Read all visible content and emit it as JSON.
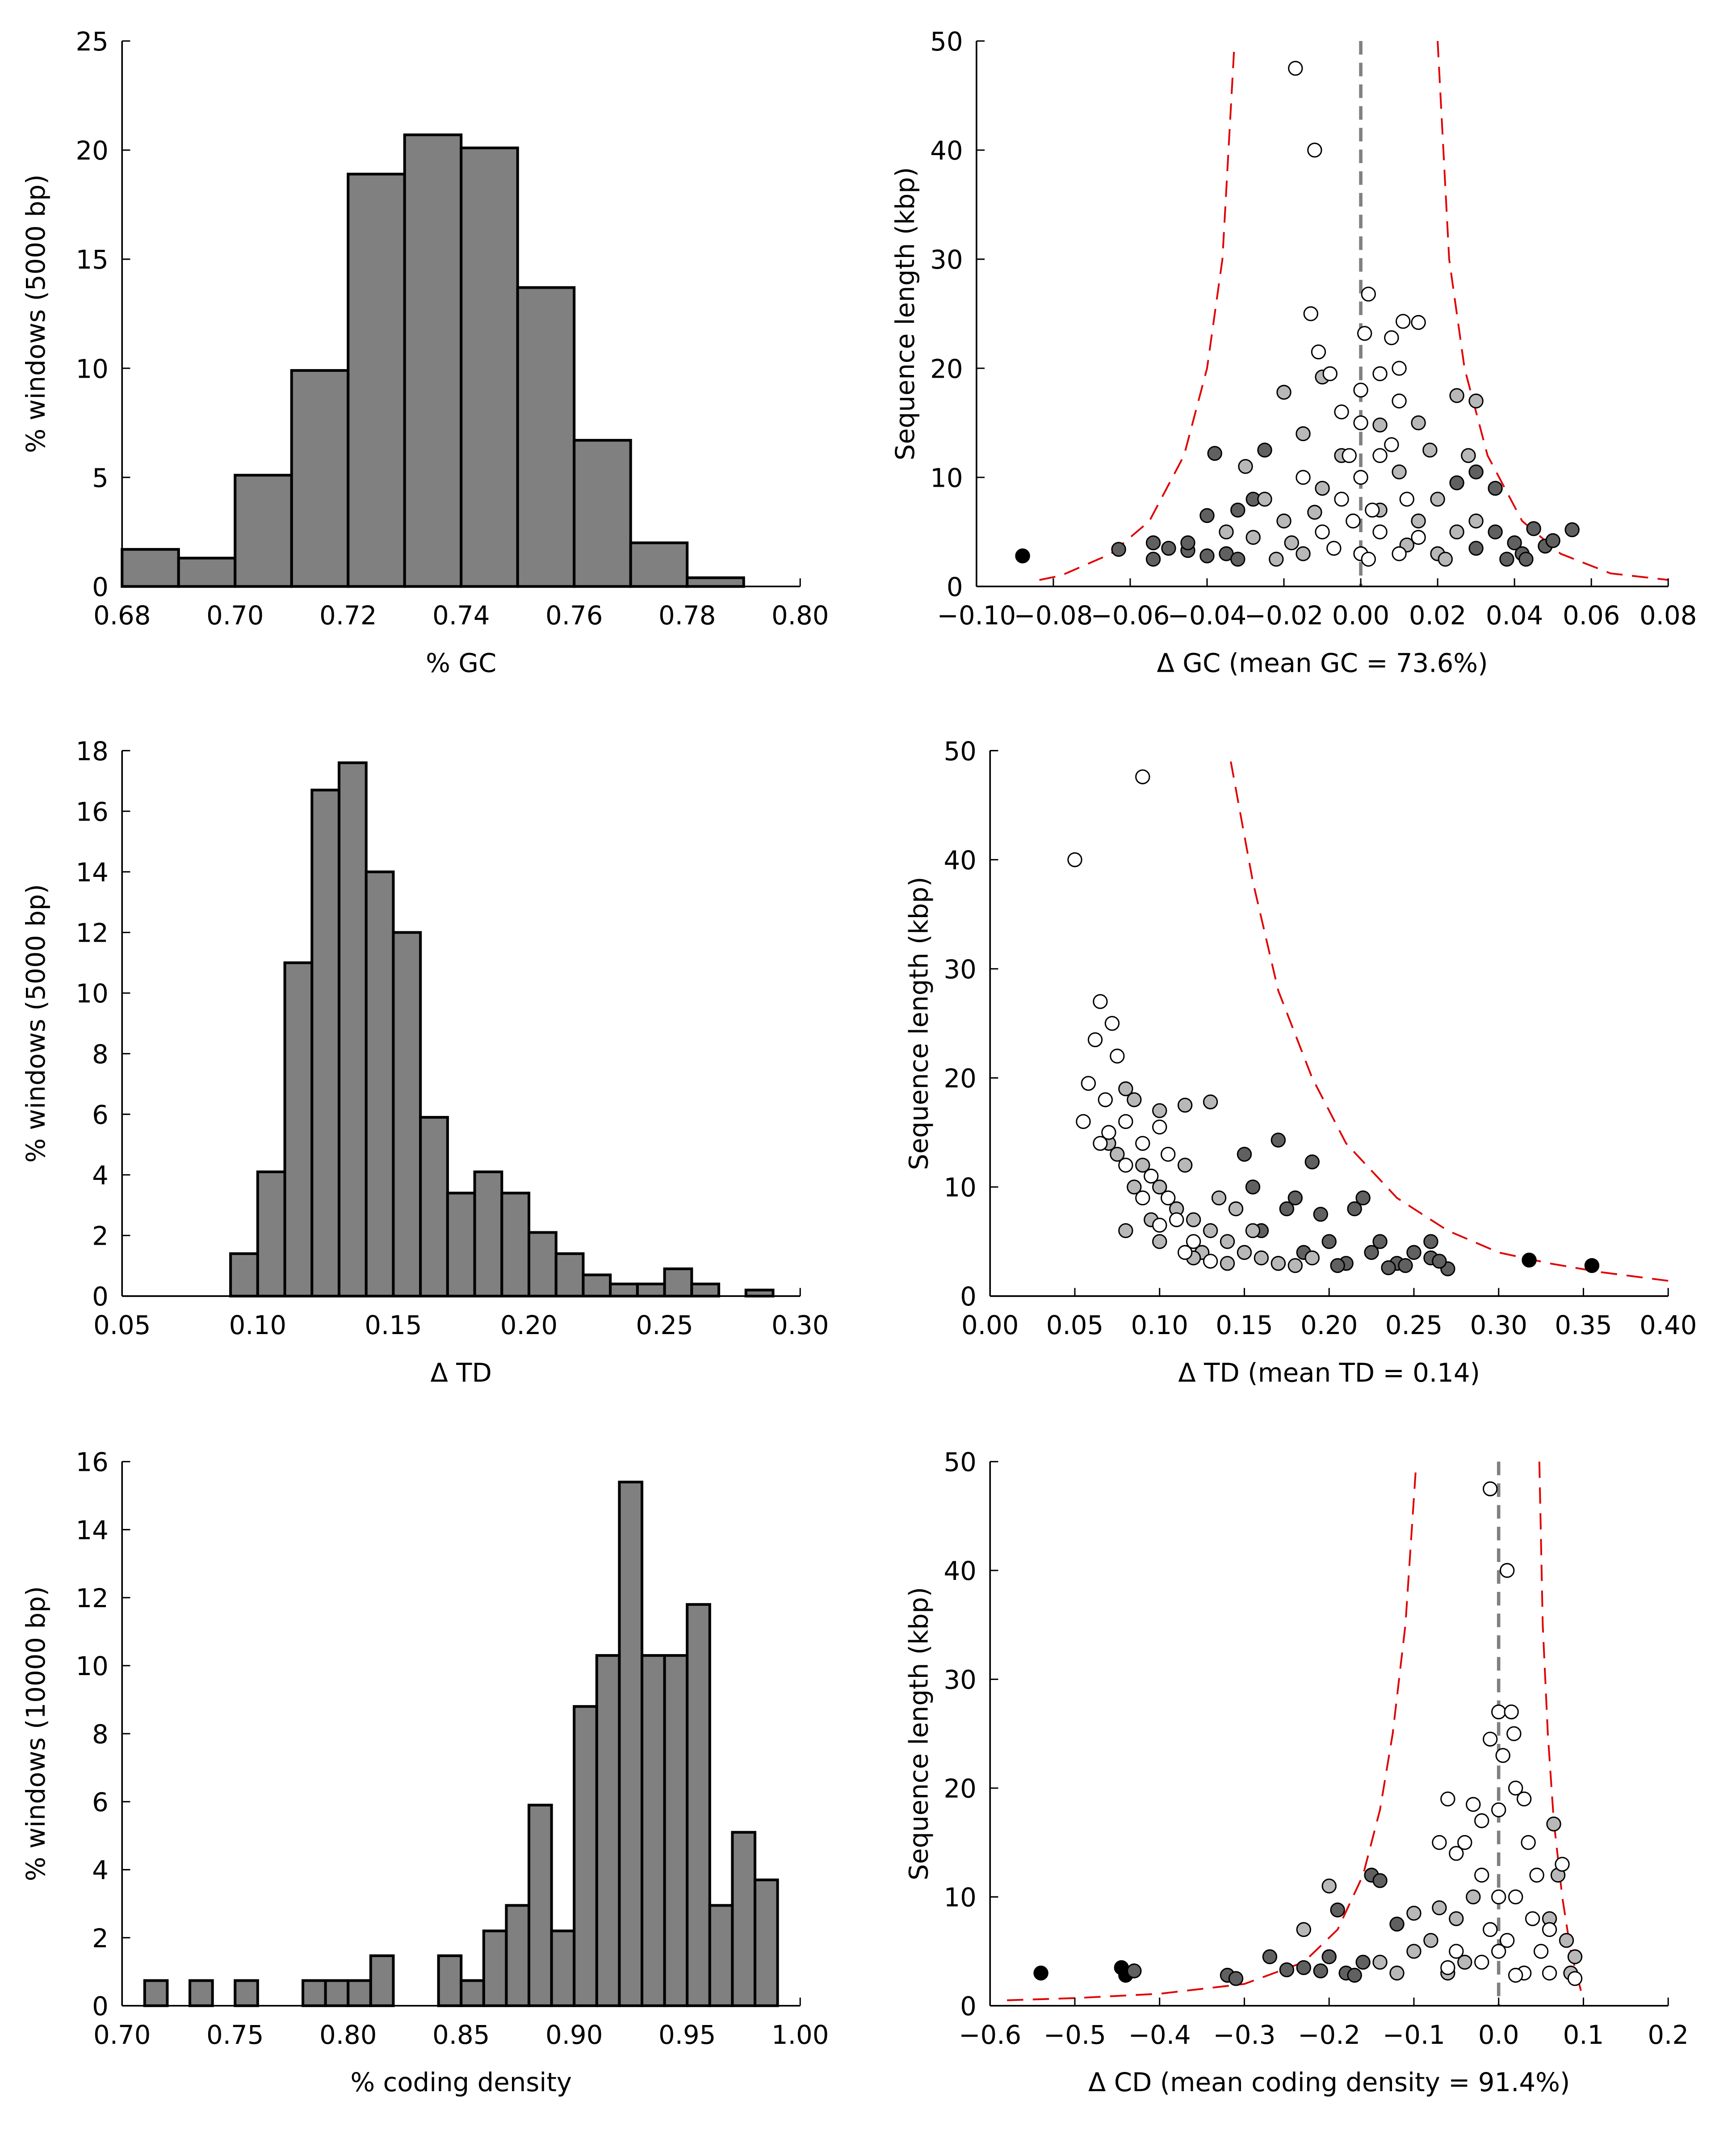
{
  "chart_data": [
    {
      "type": "histogram",
      "xlabel": "% GC",
      "ylabel": "% windows (5000 bp)",
      "color": "#808080",
      "bins": [
        0.68,
        0.69,
        0.7,
        0.71,
        0.72,
        0.73,
        0.74,
        0.75,
        0.76,
        0.77,
        0.78,
        0.79
      ],
      "values": [
        1.7,
        1.3,
        5.1,
        9.9,
        18.9,
        20.7,
        20.1,
        13.7,
        6.7,
        2.0,
        0.4
      ],
      "xlim": [
        0.68,
        0.8
      ],
      "xticks": [
        0.68,
        {
          "value": 0.7,
          "label": "0.70"
        },
        0.72,
        0.74,
        0.76,
        0.78,
        {
          "value": 0.8,
          "label": "0.80"
        }
      ],
      "ylim": [
        0,
        25
      ],
      "yticks": [
        0,
        5,
        10,
        15,
        20,
        25
      ]
    },
    {
      "type": "scatter",
      "xlabel": "Δ GC (mean GC = 73.6%)",
      "ylabel": "Sequence length (kbp)",
      "xlim": [
        -0.1,
        0.08
      ],
      "xticks": [
        {
          "value": -0.1,
          "label": "−0.10"
        },
        {
          "value": -0.08,
          "label": "−0.08"
        },
        {
          "value": -0.06,
          "label": "−0.06"
        },
        {
          "value": -0.04,
          "label": "−0.04"
        },
        {
          "value": -0.02,
          "label": "−0.02"
        },
        {
          "value": 0,
          "label": "0.00"
        },
        0.02,
        0.04,
        0.06,
        0.08
      ],
      "ylim": [
        0,
        50
      ],
      "yticks": [
        0,
        10,
        20,
        30,
        40,
        50
      ],
      "vline": {
        "value": 0,
        "color": "#808080"
      },
      "curves": [
        {
          "color": "#e00000",
          "x": [
            -0.033,
            -0.036,
            -0.04,
            -0.046,
            -0.055,
            -0.065,
            -0.078,
            -0.085
          ],
          "y": [
            49,
            30,
            20,
            12,
            6,
            3,
            1,
            0.5
          ]
        },
        {
          "color": "#e00000",
          "x": [
            0.02,
            0.023,
            0.027,
            0.033,
            0.042,
            0.052,
            0.065,
            0.08
          ],
          "y": [
            50,
            30,
            20,
            12,
            6,
            3,
            1.2,
            0.6
          ]
        }
      ],
      "series": [
        {
          "color": "#000000",
          "x": [
            -0.088
          ],
          "y": [
            2.8
          ]
        },
        {
          "color": "#606060",
          "x": [
            -0.063,
            -0.054,
            -0.054,
            -0.05,
            -0.045,
            -0.04,
            -0.038,
            -0.035,
            -0.032,
            -0.025,
            -0.032,
            0.03,
            0.035,
            0.035,
            0.04,
            0.042,
            0.045,
            0.048,
            0.055,
            0.05,
            0.03,
            0.025,
            -0.028,
            0.038,
            0.043,
            -0.04,
            -0.045
          ],
          "y": [
            3.4,
            4.0,
            2.5,
            3.5,
            3.3,
            6.5,
            12.2,
            3.0,
            7.0,
            12.5,
            2.5,
            3.5,
            5,
            9,
            4,
            3,
            5.3,
            3.7,
            5.2,
            4.2,
            10.5,
            9.5,
            8,
            2.5,
            2.5,
            2.8,
            4
          ]
        },
        {
          "color": "#b8b8b8",
          "x": [
            -0.02,
            -0.015,
            -0.01,
            0.005,
            0.015,
            0.025,
            0.03,
            -0.03,
            -0.025,
            -0.02,
            -0.018,
            -0.015,
            -0.01,
            0.01,
            0.02,
            0.025,
            0.02,
            0.015,
            0.028,
            0.018,
            0.005,
            -0.005,
            -0.022,
            0.022,
            0.0,
            0.03,
            -0.028,
            -0.035,
            0.012,
            -0.012
          ],
          "y": [
            17.8,
            14,
            19.2,
            14.8,
            15,
            17.5,
            17,
            11,
            8,
            6,
            4,
            3,
            9,
            10.5,
            8,
            5,
            3,
            6,
            12,
            12.5,
            7,
            12,
            2.5,
            2.5,
            3,
            6,
            4.5,
            5,
            3.8,
            6.8
          ]
        },
        {
          "color": "#ffffff",
          "x": [
            -0.017,
            -0.012,
            -0.013,
            -0.011,
            0.001,
            0.011,
            0.015,
            0.002,
            0.008,
            -0.008,
            0.0,
            0.005,
            0.01,
            0.0,
            0.005,
            -0.005,
            0.01,
            0.0,
            -0.005,
            0.005,
            0.0,
            -0.01,
            0.01,
            0.003,
            -0.003,
            0.012,
            -0.015,
            0.002,
            -0.007,
            0.015,
            0.008,
            -0.002
          ],
          "y": [
            47.5,
            40,
            25,
            21.5,
            23.2,
            24.3,
            24.2,
            26.8,
            22.8,
            19.5,
            18,
            19.5,
            20,
            15,
            12,
            16,
            17,
            10,
            8,
            5,
            3,
            5,
            3,
            7,
            12,
            8,
            10,
            2.5,
            3.5,
            4.5,
            13,
            6
          ]
        }
      ]
    },
    {
      "type": "histogram",
      "xlabel": "Δ TD",
      "ylabel": "% windows (5000 bp)",
      "color": "#808080",
      "bins": [
        0.09,
        0.1,
        0.11,
        0.12,
        0.13,
        0.14,
        0.15,
        0.16,
        0.17,
        0.18,
        0.19,
        0.2,
        0.21,
        0.22,
        0.23,
        0.24,
        0.25,
        0.26,
        0.27,
        0.28,
        0.29
      ],
      "values": [
        1.4,
        4.1,
        11.0,
        16.7,
        17.6,
        14.0,
        12.0,
        5.9,
        3.4,
        4.1,
        3.4,
        2.1,
        1.4,
        0.7,
        0.4,
        0.4,
        0.9,
        0.4,
        0,
        0.2
      ],
      "xlim": [
        0.05,
        0.3
      ],
      "xticks": [
        0.05,
        {
          "value": 0.1,
          "label": "0.10"
        },
        0.15,
        {
          "value": 0.2,
          "label": "0.20"
        },
        0.25,
        {
          "value": 0.3,
          "label": "0.30"
        }
      ],
      "ylim": [
        0,
        18
      ],
      "yticks": [
        0,
        2,
        4,
        6,
        8,
        10,
        12,
        14,
        16,
        18
      ]
    },
    {
      "type": "scatter",
      "xlabel": "Δ TD (mean TD = 0.14)",
      "ylabel": "Sequence length (kbp)",
      "xlim": [
        0,
        0.4
      ],
      "xticks": [
        {
          "value": 0,
          "label": "0.00"
        },
        0.05,
        {
          "value": 0.1,
          "label": "0.10"
        },
        0.15,
        {
          "value": 0.2,
          "label": "0.20"
        },
        0.25,
        {
          "value": 0.3,
          "label": "0.30"
        },
        0.35,
        {
          "value": 0.4,
          "label": "0.40"
        }
      ],
      "ylim": [
        0,
        50
      ],
      "yticks": [
        0,
        10,
        20,
        30,
        40,
        50
      ],
      "curves": [
        {
          "color": "#e00000",
          "x": [
            0.142,
            0.155,
            0.17,
            0.19,
            0.21,
            0.24,
            0.27,
            0.3,
            0.33,
            0.36,
            0.4
          ],
          "y": [
            49,
            38,
            28,
            20,
            14,
            9,
            6,
            4,
            3,
            2.2,
            1.4
          ]
        }
      ],
      "series": [
        {
          "color": "#000000",
          "x": [
            0.318,
            0.355
          ],
          "y": [
            3.3,
            2.8
          ]
        },
        {
          "color": "#606060",
          "x": [
            0.15,
            0.17,
            0.19,
            0.22,
            0.23,
            0.24,
            0.25,
            0.26,
            0.27,
            0.2,
            0.21,
            0.18,
            0.195,
            0.225,
            0.175,
            0.26,
            0.215,
            0.16,
            0.185,
            0.205,
            0.235,
            0.265,
            0.245,
            0.17,
            0.155
          ],
          "y": [
            13,
            14.3,
            12.3,
            9,
            5,
            3,
            4,
            3.5,
            2.5,
            5,
            3,
            9,
            7.5,
            4,
            8,
            5,
            8,
            6,
            4,
            2.8,
            2.6,
            3.2,
            2.8,
            3,
            10
          ]
        },
        {
          "color": "#b8b8b8",
          "x": [
            0.08,
            0.085,
            0.1,
            0.115,
            0.13,
            0.07,
            0.09,
            0.1,
            0.11,
            0.12,
            0.13,
            0.14,
            0.15,
            0.16,
            0.17,
            0.18,
            0.1,
            0.095,
            0.125,
            0.135,
            0.145,
            0.155,
            0.075,
            0.085,
            0.115,
            0.12,
            0.14,
            0.19,
            0.08
          ],
          "y": [
            19,
            18,
            17,
            17.5,
            17.8,
            14,
            12,
            10,
            8,
            7,
            6,
            5,
            4,
            3.5,
            3,
            2.8,
            5,
            7,
            4,
            9,
            8,
            6,
            13,
            10,
            12,
            3.5,
            3,
            3.5,
            6
          ]
        },
        {
          "color": "#ffffff",
          "x": [
            0.05,
            0.09,
            0.065,
            0.072,
            0.062,
            0.075,
            0.058,
            0.055,
            0.068,
            0.08,
            0.07,
            0.08,
            0.09,
            0.1,
            0.095,
            0.105,
            0.11,
            0.09,
            0.1,
            0.12,
            0.115,
            0.13,
            0.065,
            0.105
          ],
          "y": [
            40,
            47.6,
            27,
            25,
            23.5,
            22,
            19.5,
            16,
            18,
            16,
            15,
            12,
            14,
            15.5,
            11,
            9,
            7,
            9,
            6.5,
            5,
            4,
            3.2,
            14,
            13
          ]
        }
      ]
    },
    {
      "type": "histogram",
      "xlabel": "% coding density",
      "ylabel": "% windows (10000 bp)",
      "color": "#808080",
      "bins": [
        0.71,
        0.72,
        0.73,
        0.74,
        0.75,
        0.76,
        0.77,
        0.78,
        0.79,
        0.8,
        0.81,
        0.82,
        0.83,
        0.84,
        0.85,
        0.86,
        0.87,
        0.88,
        0.89,
        0.9,
        0.91,
        0.92,
        0.93,
        0.94,
        0.95,
        0.96,
        0.97,
        0.98,
        0.99
      ],
      "values": [
        0.74,
        0,
        0.74,
        0,
        0.74,
        0,
        0,
        0.74,
        0.74,
        0.74,
        1.47,
        0,
        0,
        1.47,
        0.74,
        2.2,
        2.95,
        5.9,
        2.2,
        8.8,
        10.3,
        15.4,
        10.3,
        10.3,
        11.8,
        2.95,
        5.1,
        3.7
      ],
      "xlim": [
        0.7,
        1.0
      ],
      "xticks": [
        {
          "value": 0.7,
          "label": "0.70"
        },
        0.75,
        {
          "value": 0.8,
          "label": "0.80"
        },
        0.85,
        {
          "value": 0.9,
          "label": "0.90"
        },
        0.95,
        {
          "value": 1.0,
          "label": "1.00"
        }
      ],
      "ylim": [
        0,
        16
      ],
      "yticks": [
        0,
        2,
        4,
        6,
        8,
        10,
        12,
        14,
        16
      ]
    },
    {
      "type": "scatter",
      "xlabel": "Δ CD (mean coding density = 91.4%)",
      "ylabel": "Sequence length (kbp)",
      "xlim": [
        -0.6,
        0.2
      ],
      "xticks": [
        {
          "value": -0.6,
          "label": "−0.6"
        },
        {
          "value": -0.5,
          "label": "−0.5"
        },
        {
          "value": -0.4,
          "label": "−0.4"
        },
        {
          "value": -0.3,
          "label": "−0.3"
        },
        {
          "value": -0.2,
          "label": "−0.2"
        },
        {
          "value": -0.1,
          "label": "−0.1"
        },
        {
          "value": 0,
          "label": "0.0"
        },
        0.1,
        0.2
      ],
      "ylim": [
        0,
        50
      ],
      "yticks": [
        0,
        10,
        20,
        30,
        40,
        50
      ],
      "vline": {
        "value": 0,
        "color": "#808080"
      },
      "curves": [
        {
          "color": "#e00000",
          "x": [
            -0.098,
            -0.11,
            -0.125,
            -0.14,
            -0.16,
            -0.19,
            -0.23,
            -0.3,
            -0.4,
            -0.5,
            -0.58
          ],
          "y": [
            49,
            35,
            25,
            18,
            12,
            7,
            4,
            2,
            1.1,
            0.7,
            0.5
          ]
        },
        {
          "color": "#e00000",
          "x": [
            0.048,
            0.052,
            0.058,
            0.065,
            0.075,
            0.085,
            0.095,
            0.1
          ],
          "y": [
            50,
            35,
            25,
            17,
            10,
            5,
            2,
            0.5
          ]
        }
      ],
      "series": [
        {
          "color": "#000000",
          "x": [
            -0.54,
            -0.445,
            -0.44
          ],
          "y": [
            3,
            3.5,
            2.8
          ]
        },
        {
          "color": "#606060",
          "x": [
            -0.43,
            -0.32,
            -0.31,
            -0.27,
            -0.25,
            -0.23,
            -0.2,
            -0.19,
            -0.18,
            -0.15,
            -0.14,
            -0.12,
            -0.16,
            -0.21,
            -0.17
          ],
          "y": [
            3.2,
            2.8,
            2.5,
            4.5,
            3.3,
            3.5,
            4.5,
            8.8,
            3,
            12,
            11.5,
            7.5,
            4,
            3.2,
            2.8
          ]
        },
        {
          "color": "#b8b8b8",
          "x": [
            -0.2,
            -0.23,
            -0.14,
            -0.12,
            -0.1,
            -0.08,
            -0.06,
            -0.05,
            -0.04,
            0.06,
            0.08,
            0.085,
            0.09,
            0.07,
            0.065,
            -0.1,
            -0.03,
            -0.07
          ],
          "y": [
            11,
            7,
            4,
            3,
            5,
            6,
            3,
            8,
            4,
            8,
            6,
            3,
            4.5,
            12,
            16.7,
            8.5,
            10,
            9
          ]
        },
        {
          "color": "#ffffff",
          "x": [
            -0.01,
            0.01,
            0.0,
            0.015,
            -0.01,
            0.005,
            0.018,
            0.02,
            0.0,
            -0.02,
            0.03,
            -0.04,
            -0.05,
            -0.02,
            0.0,
            0.02,
            0.04,
            0.0,
            -0.02,
            0.03,
            0.05,
            0.06,
            -0.05,
            -0.07,
            -0.06,
            -0.03,
            0.075,
            0.045,
            0.01,
            -0.01,
            0.035,
            -0.06,
            0.02,
            0.06,
            0.09
          ],
          "y": [
            47.5,
            40,
            27,
            27,
            24.5,
            23,
            25,
            20,
            18,
            17,
            19,
            15,
            14,
            12,
            10,
            10,
            8,
            5,
            4,
            3,
            5,
            3,
            5,
            15,
            19,
            18.5,
            13,
            12,
            6,
            7,
            15,
            3.5,
            2.8,
            7,
            2.5
          ]
        }
      ]
    }
  ]
}
